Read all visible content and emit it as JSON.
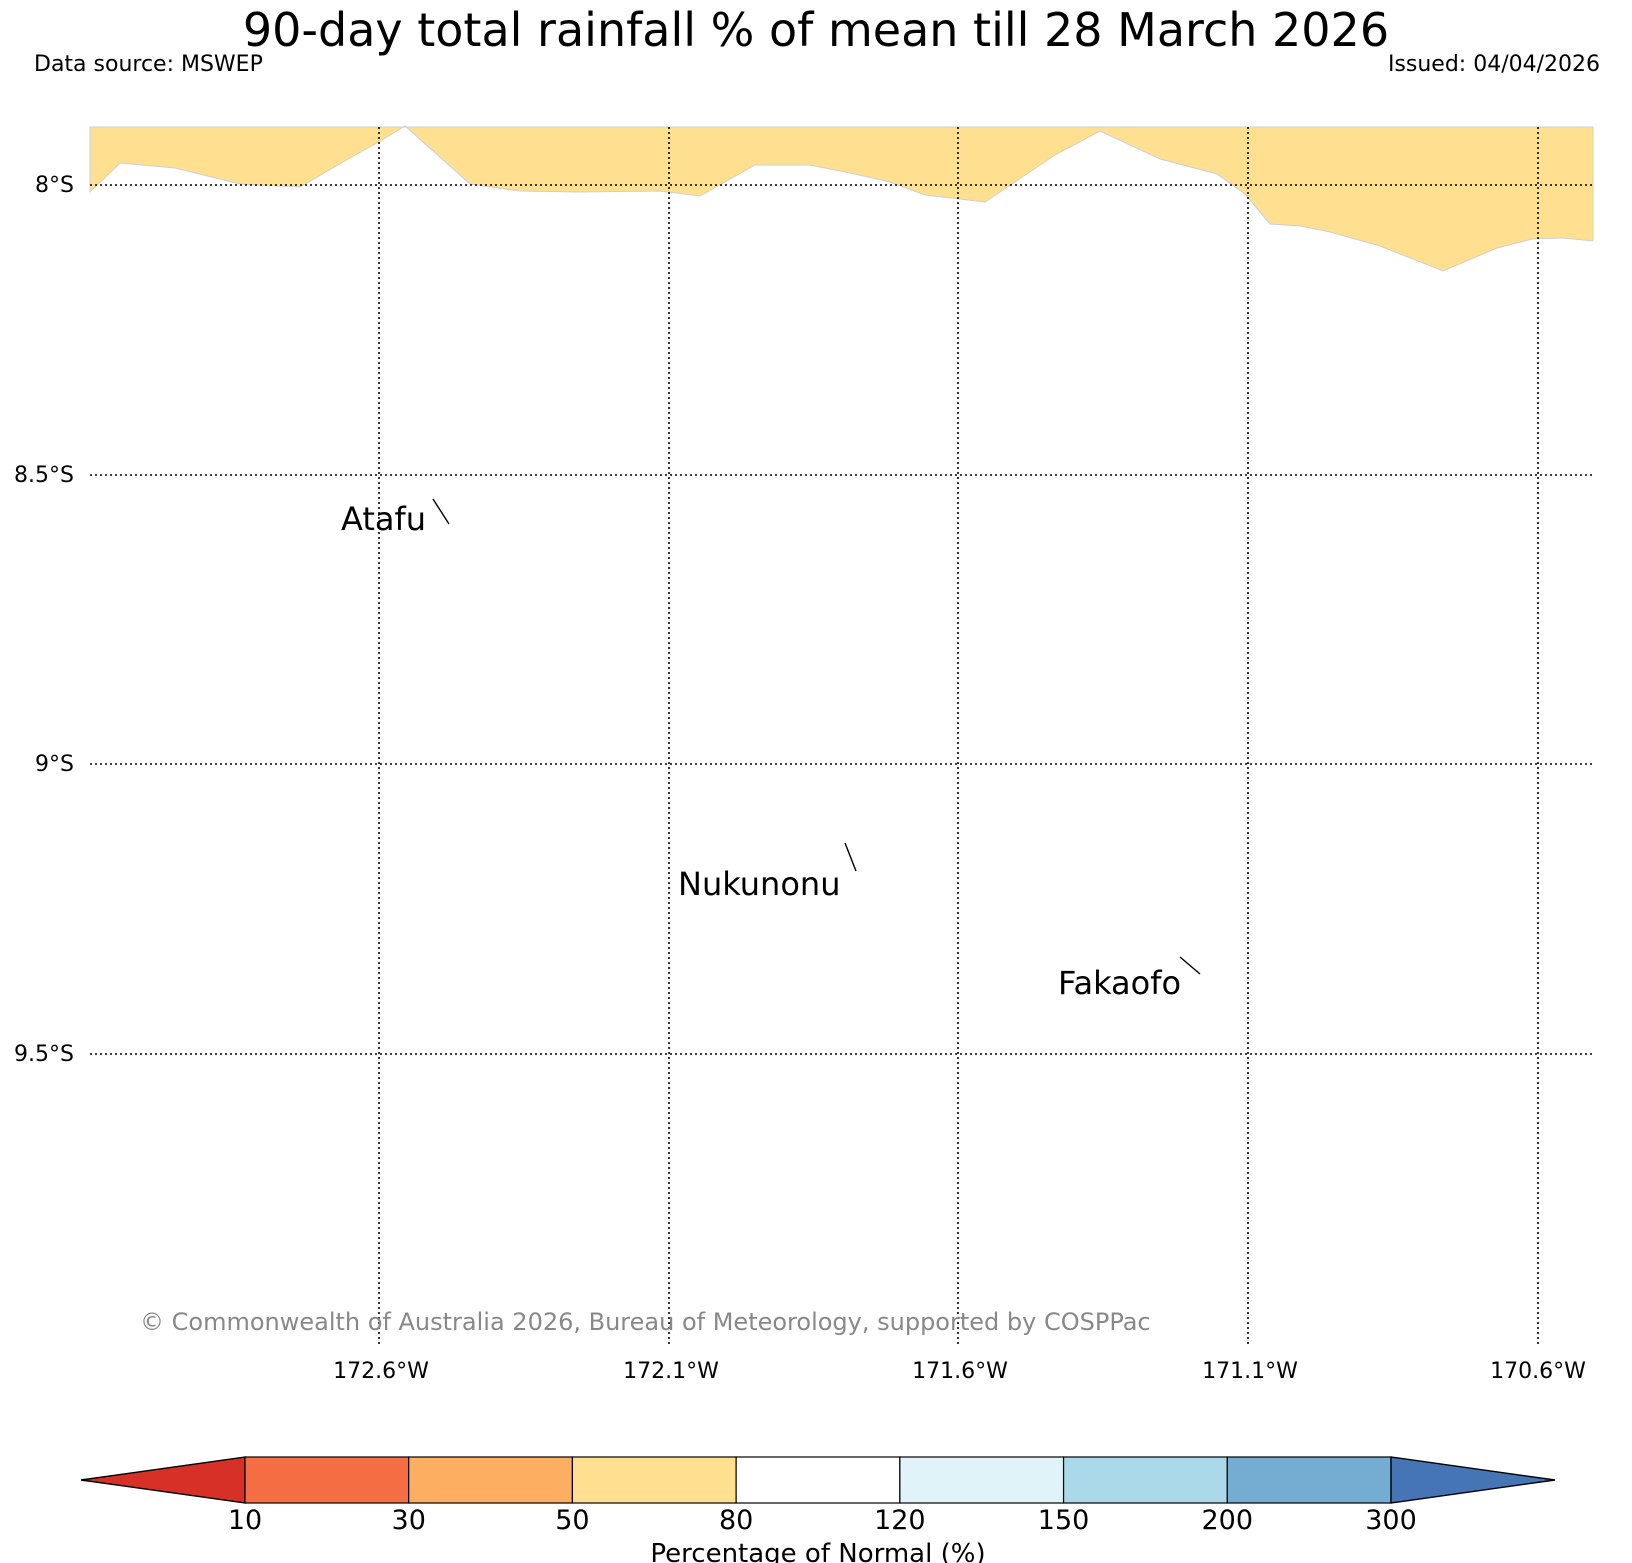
{
  "header": {
    "title": "90-day total rainfall % of mean till 28 March 2026",
    "data_source": "Data source: MSWEP",
    "issued": "Issued: 04/04/2026"
  },
  "map": {
    "lat_labels": [
      "8°S",
      "8.5°S",
      "9°S",
      "9.5°S"
    ],
    "lon_labels": [
      "172.6°W",
      "172.1°W",
      "171.6°W",
      "171.1°W",
      "170.6°W"
    ],
    "places": [
      {
        "name": "Atafu"
      },
      {
        "name": "Nukunonu"
      },
      {
        "name": "Fakaofo"
      }
    ],
    "shaded_band": {
      "range": "50–80",
      "color": "#fee090"
    },
    "copyright": "© Commonwealth of Australia 2026, Bureau of Meteorology, supported by COSPPac"
  },
  "colorbar": {
    "title": "Percentage of Normal (%)",
    "ticks": [
      "10",
      "30",
      "50",
      "80",
      "120",
      "150",
      "200",
      "300"
    ],
    "under_color": "#d73027",
    "over_color": "#4575b4",
    "bins": [
      {
        "from": "10",
        "to": "30",
        "color": "#f46d43"
      },
      {
        "from": "30",
        "to": "50",
        "color": "#fdae61"
      },
      {
        "from": "50",
        "to": "80",
        "color": "#fee090"
      },
      {
        "from": "80",
        "to": "120",
        "color": "#ffffff"
      },
      {
        "from": "120",
        "to": "150",
        "color": "#e0f3f8"
      },
      {
        "from": "150",
        "to": "200",
        "color": "#abd9e9"
      },
      {
        "from": "200",
        "to": "300",
        "color": "#74add1"
      }
    ]
  }
}
